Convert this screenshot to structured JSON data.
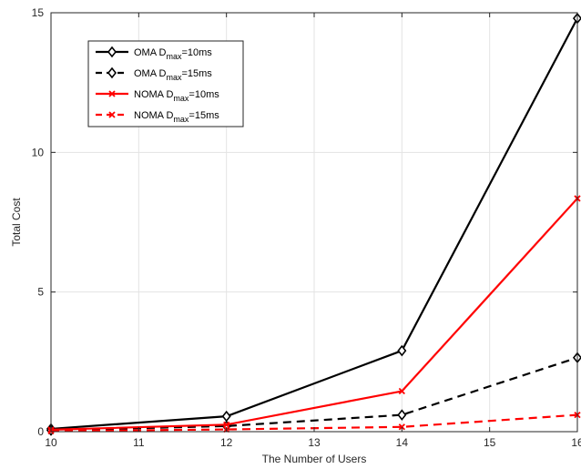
{
  "chart_data": {
    "type": "line",
    "xlabel": "The Number of Users",
    "ylabel": "Total Cost",
    "xlim": [
      10,
      16
    ],
    "ylim": [
      0,
      15
    ],
    "xticks": [
      10,
      11,
      12,
      13,
      14,
      15,
      16
    ],
    "yticks": [
      0,
      5,
      10,
      15
    ],
    "grid": true,
    "legend_position": "top-left",
    "x": [
      10,
      12,
      14,
      16
    ],
    "series": [
      {
        "name_prefix": "OMA D",
        "name_sub": "max",
        "name_suffix": "=10ms",
        "color": "#000000",
        "dash": "solid",
        "marker": "diamond",
        "values": [
          0.1,
          0.55,
          2.9,
          14.8
        ]
      },
      {
        "name_prefix": "OMA D",
        "name_sub": "max",
        "name_suffix": "=15ms",
        "color": "#000000",
        "dash": "dashed",
        "marker": "diamond",
        "values": [
          0.05,
          0.2,
          0.6,
          2.65
        ]
      },
      {
        "name_prefix": "NOMA D",
        "name_sub": "max",
        "name_suffix": "=10ms",
        "color": "#ff0000",
        "dash": "solid",
        "marker": "x",
        "values": [
          0.07,
          0.25,
          1.45,
          8.35
        ]
      },
      {
        "name_prefix": "NOMA D",
        "name_sub": "max",
        "name_suffix": "=15ms",
        "color": "#ff0000",
        "dash": "dashed",
        "marker": "x",
        "values": [
          0.02,
          0.08,
          0.17,
          0.6
        ]
      }
    ]
  }
}
